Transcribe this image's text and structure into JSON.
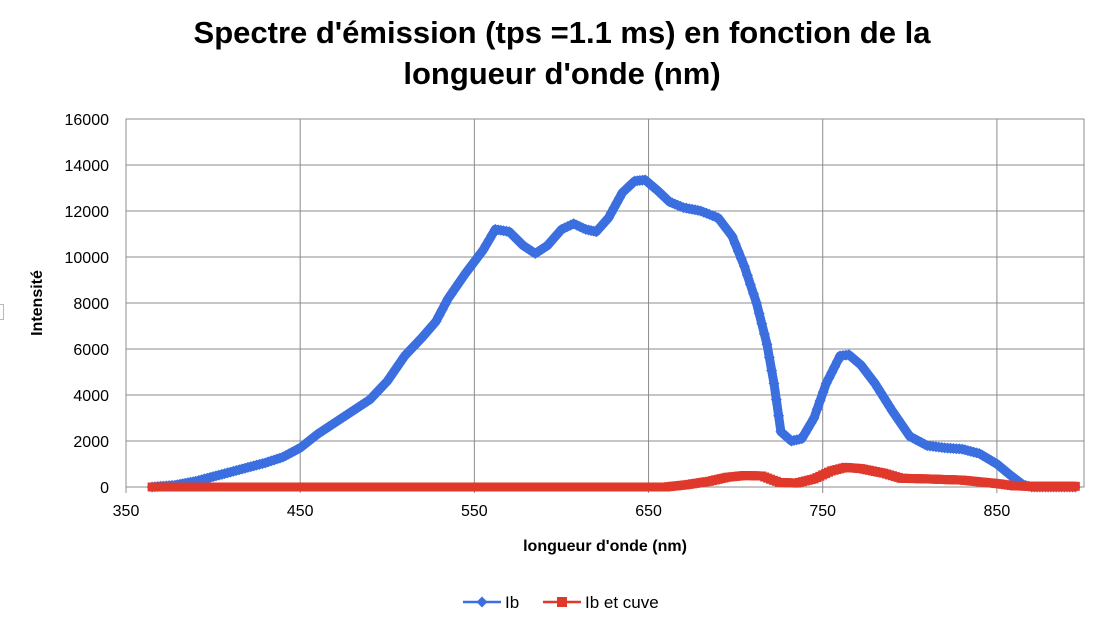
{
  "chart_data": {
    "type": "line",
    "title": [
      "Spectre d'émission (tps =1.1 ms) en fonction de la",
      "longueur d'onde (nm)"
    ],
    "xlabel": "longueur d'onde (nm)",
    "ylabel": "Intensité",
    "xlim": [
      350,
      900
    ],
    "ylim": [
      0,
      16000
    ],
    "xticks": [
      350,
      450,
      550,
      650,
      750,
      850
    ],
    "yticks": [
      0,
      2000,
      4000,
      6000,
      8000,
      10000,
      12000,
      14000,
      16000
    ],
    "grid": true,
    "legend_position": "bottom",
    "series": [
      {
        "name": "Ib",
        "color": "#3b6fe0",
        "marker": "diamond",
        "points": [
          [
            365,
            0
          ],
          [
            378,
            80
          ],
          [
            390,
            250
          ],
          [
            400,
            450
          ],
          [
            410,
            650
          ],
          [
            420,
            850
          ],
          [
            430,
            1050
          ],
          [
            440,
            1300
          ],
          [
            450,
            1700
          ],
          [
            460,
            2300
          ],
          [
            470,
            2800
          ],
          [
            480,
            3300
          ],
          [
            490,
            3800
          ],
          [
            500,
            4600
          ],
          [
            510,
            5700
          ],
          [
            520,
            6500
          ],
          [
            528,
            7200
          ],
          [
            535,
            8200
          ],
          [
            545,
            9300
          ],
          [
            555,
            10300
          ],
          [
            562,
            11200
          ],
          [
            570,
            11100
          ],
          [
            578,
            10500
          ],
          [
            585,
            10150
          ],
          [
            592,
            10500
          ],
          [
            600,
            11200
          ],
          [
            607,
            11450
          ],
          [
            614,
            11200
          ],
          [
            620,
            11100
          ],
          [
            627,
            11700
          ],
          [
            635,
            12800
          ],
          [
            642,
            13300
          ],
          [
            648,
            13350
          ],
          [
            655,
            12900
          ],
          [
            662,
            12400
          ],
          [
            670,
            12150
          ],
          [
            680,
            12000
          ],
          [
            690,
            11700
          ],
          [
            698,
            10900
          ],
          [
            705,
            9600
          ],
          [
            712,
            8000
          ],
          [
            718,
            6200
          ],
          [
            722,
            4500
          ],
          [
            726,
            2400
          ],
          [
            732,
            2000
          ],
          [
            738,
            2100
          ],
          [
            745,
            3000
          ],
          [
            752,
            4500
          ],
          [
            760,
            5700
          ],
          [
            765,
            5750
          ],
          [
            772,
            5300
          ],
          [
            780,
            4500
          ],
          [
            790,
            3300
          ],
          [
            800,
            2200
          ],
          [
            810,
            1800
          ],
          [
            820,
            1700
          ],
          [
            830,
            1650
          ],
          [
            840,
            1450
          ],
          [
            850,
            1000
          ],
          [
            858,
            500
          ],
          [
            865,
            100
          ],
          [
            870,
            0
          ],
          [
            895,
            0
          ]
        ]
      },
      {
        "name": "Ib et cuve",
        "color": "#e0392b",
        "marker": "square",
        "points": [
          [
            365,
            0
          ],
          [
            660,
            0
          ],
          [
            672,
            100
          ],
          [
            685,
            250
          ],
          [
            695,
            420
          ],
          [
            705,
            500
          ],
          [
            715,
            480
          ],
          [
            725,
            200
          ],
          [
            735,
            170
          ],
          [
            745,
            350
          ],
          [
            755,
            700
          ],
          [
            763,
            850
          ],
          [
            772,
            800
          ],
          [
            785,
            600
          ],
          [
            795,
            380
          ],
          [
            810,
            350
          ],
          [
            830,
            300
          ],
          [
            850,
            150
          ],
          [
            860,
            50
          ],
          [
            868,
            30
          ],
          [
            895,
            30
          ]
        ]
      }
    ]
  }
}
